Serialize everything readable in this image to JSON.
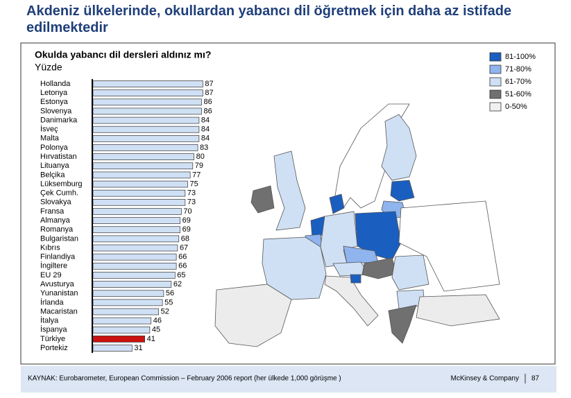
{
  "chart_data": {
    "type": "bar",
    "title": "Akdeniz ülkelerinde, okullardan yabancı dil öğretmek için daha az istifade edilmektedir",
    "subtitle": "Okulda yabancı dil dersleri aldınız mı?",
    "unit": "Yüzde",
    "orientation": "horizontal",
    "categories": [
      "Hollanda",
      "Letonya",
      "Estonya",
      "Slovenya",
      "Danimarka",
      "İsveç",
      "Malta",
      "Polonya",
      "Hırvatistan",
      "Lituanya",
      "Belçika",
      "Lüksemburg",
      "Çek Cumh.",
      "Slovakya",
      "Fransa",
      "Almanya",
      "Romanya",
      "Bulgaristan",
      "Kıbrıs",
      "Finlandiya",
      "İngiltere",
      "EU 29",
      "Avusturya",
      "Yunanistan",
      "İrlanda",
      "Macaristan",
      "İtalya",
      "İspanya",
      "Türkiye",
      "Portekiz"
    ],
    "values": [
      87,
      87,
      86,
      86,
      84,
      84,
      84,
      83,
      80,
      79,
      77,
      75,
      73,
      73,
      70,
      69,
      69,
      68,
      67,
      66,
      66,
      65,
      62,
      56,
      55,
      52,
      46,
      45,
      41,
      31
    ],
    "bar_colors": [
      "#cfe0f5",
      "#cfe0f5",
      "#cfe0f5",
      "#cfe0f5",
      "#cfe0f5",
      "#cfe0f5",
      "#cfe0f5",
      "#cfe0f5",
      "#cfe0f5",
      "#cfe0f5",
      "#cfe0f5",
      "#cfe0f5",
      "#cfe0f5",
      "#cfe0f5",
      "#cfe0f5",
      "#cfe0f5",
      "#cfe0f5",
      "#cfe0f5",
      "#cfe0f5",
      "#cfe0f5",
      "#cfe0f5",
      "#cfe0f5",
      "#cfe0f5",
      "#cfe0f5",
      "#cfe0f5",
      "#cfe0f5",
      "#cfe0f5",
      "#cfe0f5",
      "#cc1111",
      "#cfe0f5"
    ],
    "xlim": [
      0,
      100
    ],
    "map_legend": [
      {
        "label": "81-100%",
        "color": "#1a5fc0"
      },
      {
        "label": "71-80%",
        "color": "#8fb4ee"
      },
      {
        "label": "61-70%",
        "color": "#cfe0f5"
      },
      {
        "label": "51-60%",
        "color": "#707070"
      },
      {
        "label": "0-50%",
        "color": "#f0f0f0"
      }
    ],
    "source": "KAYNAK: Eurobarometer, European Commission – February 2006 report (her ülkede 1,000 görüşme )",
    "company": "McKinsey & Company",
    "page_number": "87"
  }
}
